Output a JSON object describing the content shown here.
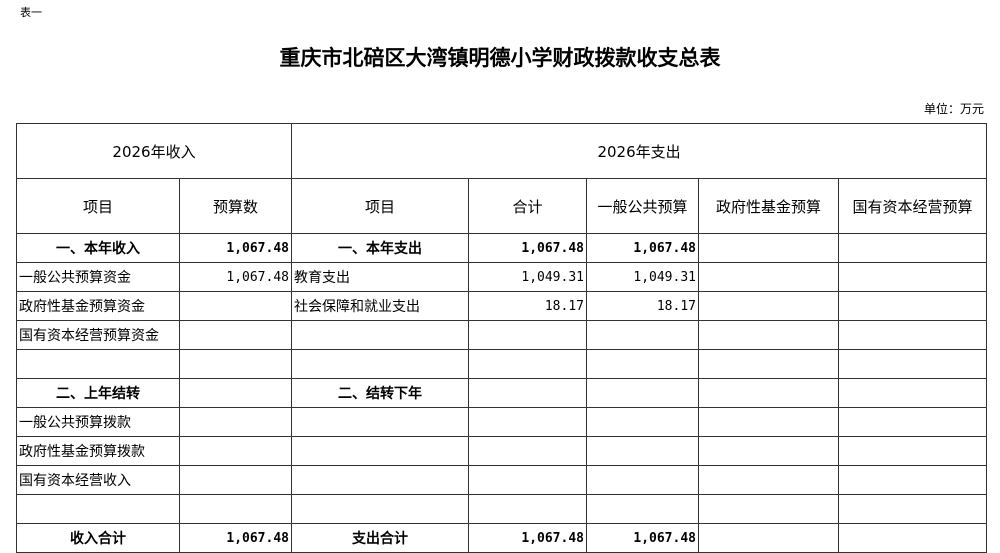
{
  "label": "表一",
  "title": "重庆市北碚区大湾镇明德小学财政拨款收支总表",
  "unit": "单位：万元",
  "header": {
    "income": "2026年收入",
    "expense": "2026年支出"
  },
  "columns": [
    "项目",
    "预算数",
    "项目",
    "合计",
    "一般公共预算",
    "政府性基金预算",
    "国有资本经营预算"
  ],
  "rows": [
    {
      "bold": true,
      "cells": [
        "一、本年收入",
        "1,067.48",
        "一、本年支出",
        "1,067.48",
        "1,067.48",
        "",
        ""
      ]
    },
    {
      "bold": false,
      "cells": [
        "一般公共预算资金",
        "1,067.48",
        "教育支出",
        "1,049.31",
        "1,049.31",
        "",
        ""
      ]
    },
    {
      "bold": false,
      "cells": [
        "政府性基金预算资金",
        "",
        "社会保障和就业支出",
        "18.17",
        "18.17",
        "",
        ""
      ]
    },
    {
      "bold": false,
      "cells": [
        "国有资本经营预算资金",
        "",
        "",
        "",
        "",
        "",
        ""
      ]
    },
    {
      "bold": false,
      "cells": [
        "",
        "",
        "",
        "",
        "",
        "",
        ""
      ]
    },
    {
      "bold": true,
      "cells": [
        "二、上年结转",
        "",
        "二、结转下年",
        "",
        "",
        "",
        ""
      ]
    },
    {
      "bold": false,
      "cells": [
        "一般公共预算拨款",
        "",
        "",
        "",
        "",
        "",
        ""
      ]
    },
    {
      "bold": false,
      "cells": [
        "政府性基金预算拨款",
        "",
        "",
        "",
        "",
        "",
        ""
      ]
    },
    {
      "bold": false,
      "cells": [
        "国有资本经营收入",
        "",
        "",
        "",
        "",
        "",
        ""
      ]
    },
    {
      "bold": false,
      "cells": [
        "",
        "",
        "",
        "",
        "",
        "",
        ""
      ]
    },
    {
      "bold": true,
      "cells": [
        "收入合计",
        "1,067.48",
        "支出合计",
        "1,067.48",
        "1,067.48",
        "",
        ""
      ]
    }
  ]
}
